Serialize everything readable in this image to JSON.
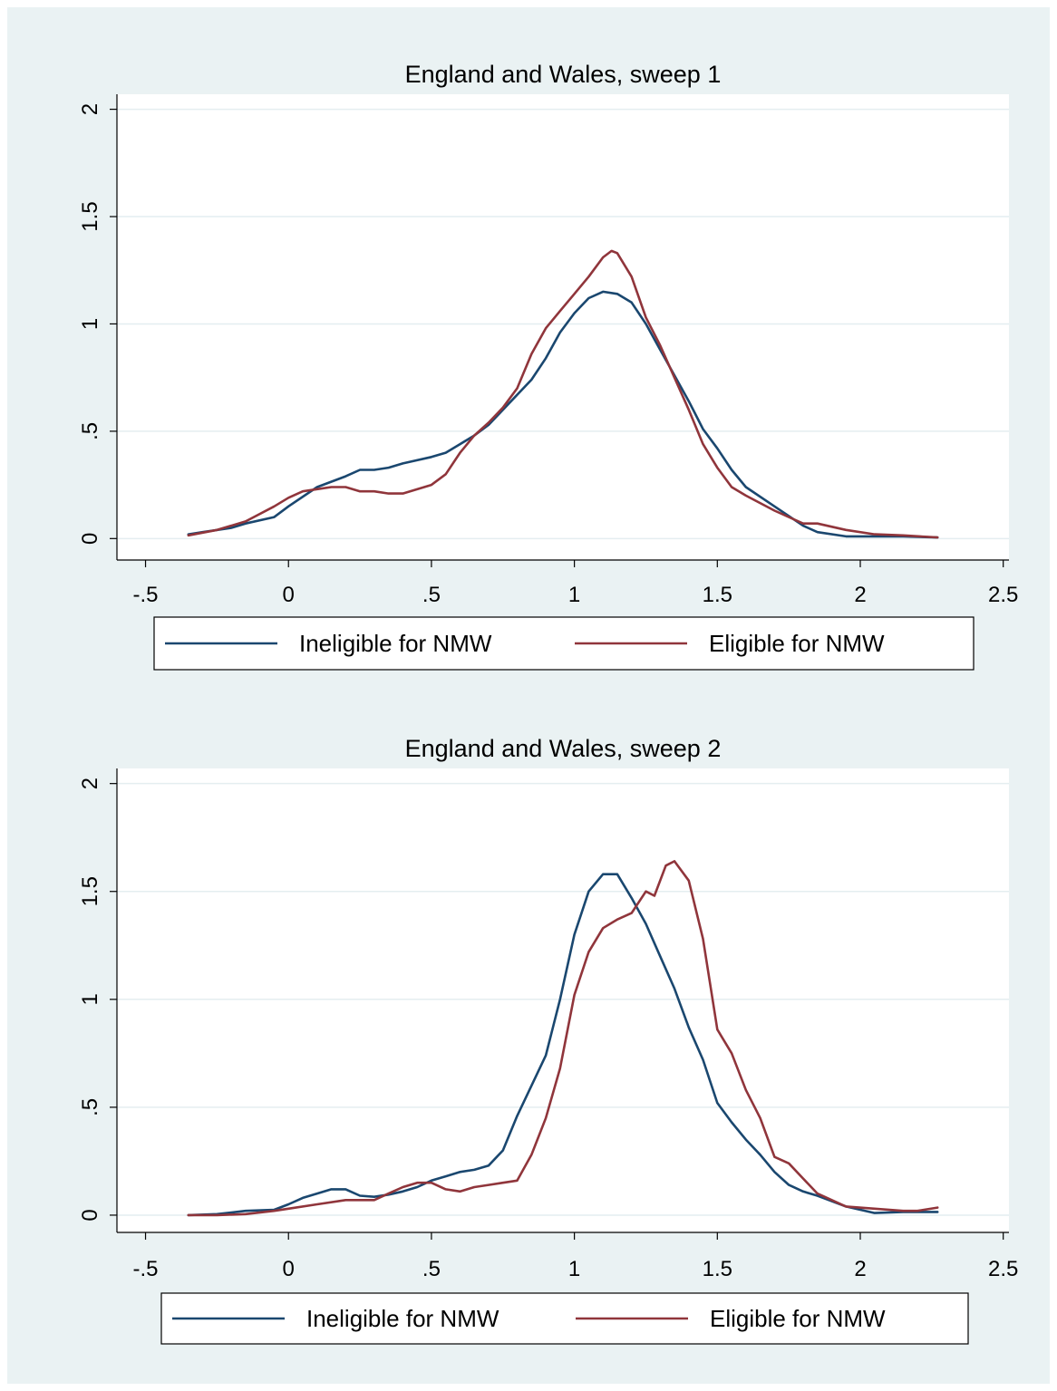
{
  "chart_data": [
    {
      "type": "line",
      "title": "England and Wales, sweep 1",
      "xlabel": "",
      "ylabel": "",
      "xlim": [
        -0.6,
        2.52
      ],
      "ylim": [
        -0.1,
        2.07
      ],
      "xticks": [
        -0.5,
        0,
        0.5,
        1,
        1.5,
        2,
        2.5
      ],
      "xtick_labels": [
        "-.5",
        "0",
        ".5",
        "1",
        "1.5",
        "2",
        "2.5"
      ],
      "yticks": [
        0,
        0.5,
        1,
        1.5,
        2
      ],
      "ytick_labels": [
        "0",
        ".5",
        "1",
        "1.5",
        "2"
      ],
      "grid": true,
      "legend_position": "bottom",
      "series": [
        {
          "name": "Ineligible for NMW",
          "color": "#1a476f",
          "x": [
            -0.35,
            -0.3,
            -0.2,
            -0.15,
            -0.05,
            0,
            0.1,
            0.2,
            0.25,
            0.3,
            0.35,
            0.4,
            0.5,
            0.55,
            0.6,
            0.65,
            0.7,
            0.75,
            0.85,
            0.9,
            0.95,
            1,
            1.05,
            1.1,
            1.15,
            1.2,
            1.25,
            1.3,
            1.35,
            1.4,
            1.45,
            1.5,
            1.55,
            1.6,
            1.7,
            1.8,
            1.85,
            1.95,
            2.05,
            2.15,
            2.27
          ],
          "y": [
            0.02,
            0.03,
            0.05,
            0.07,
            0.1,
            0.15,
            0.24,
            0.29,
            0.32,
            0.32,
            0.33,
            0.35,
            0.38,
            0.4,
            0.44,
            0.48,
            0.53,
            0.6,
            0.74,
            0.84,
            0.96,
            1.05,
            1.12,
            1.15,
            1.14,
            1.1,
            1.0,
            0.88,
            0.76,
            0.64,
            0.51,
            0.42,
            0.32,
            0.24,
            0.15,
            0.06,
            0.03,
            0.01,
            0.01,
            0.01,
            0.005
          ]
        },
        {
          "name": "Eligible for NMW",
          "color": "#90353b",
          "x": [
            -0.35,
            -0.25,
            -0.15,
            -0.05,
            0,
            0.05,
            0.1,
            0.15,
            0.2,
            0.25,
            0.3,
            0.35,
            0.4,
            0.5,
            0.55,
            0.6,
            0.65,
            0.7,
            0.75,
            0.8,
            0.85,
            0.9,
            0.95,
            1.0,
            1.05,
            1.1,
            1.13,
            1.15,
            1.2,
            1.25,
            1.3,
            1.35,
            1.4,
            1.45,
            1.5,
            1.55,
            1.6,
            1.7,
            1.8,
            1.85,
            1.95,
            2.05,
            2.15,
            2.27
          ],
          "y": [
            0.015,
            0.04,
            0.08,
            0.15,
            0.19,
            0.22,
            0.23,
            0.24,
            0.24,
            0.22,
            0.22,
            0.21,
            0.21,
            0.25,
            0.3,
            0.4,
            0.48,
            0.54,
            0.61,
            0.7,
            0.86,
            0.98,
            1.06,
            1.14,
            1.22,
            1.31,
            1.34,
            1.33,
            1.22,
            1.03,
            0.9,
            0.75,
            0.6,
            0.44,
            0.33,
            0.24,
            0.2,
            0.13,
            0.07,
            0.07,
            0.04,
            0.02,
            0.015,
            0.005
          ]
        }
      ]
    },
    {
      "type": "line",
      "title": "England and Wales, sweep 2",
      "xlabel": "",
      "ylabel": "",
      "xlim": [
        -0.6,
        2.52
      ],
      "ylim": [
        -0.08,
        2.07
      ],
      "xticks": [
        -0.5,
        0,
        0.5,
        1,
        1.5,
        2,
        2.5
      ],
      "xtick_labels": [
        "-.5",
        "0",
        ".5",
        "1",
        "1.5",
        "2",
        "2.5"
      ],
      "yticks": [
        0,
        0.5,
        1,
        1.5,
        2
      ],
      "ytick_labels": [
        "0",
        ".5",
        "1",
        "1.5",
        "2"
      ],
      "grid": true,
      "legend_position": "bottom",
      "series": [
        {
          "name": "Ineligible for NMW",
          "color": "#1a476f",
          "x": [
            -0.35,
            -0.25,
            -0.15,
            -0.05,
            0,
            0.05,
            0.1,
            0.15,
            0.2,
            0.25,
            0.3,
            0.35,
            0.4,
            0.45,
            0.5,
            0.55,
            0.6,
            0.65,
            0.7,
            0.75,
            0.8,
            0.85,
            0.9,
            0.95,
            1.0,
            1.05,
            1.1,
            1.15,
            1.2,
            1.25,
            1.3,
            1.35,
            1.4,
            1.45,
            1.5,
            1.55,
            1.6,
            1.65,
            1.7,
            1.75,
            1.8,
            1.85,
            1.95,
            2.05,
            2.15,
            2.27
          ],
          "y": [
            0,
            0.005,
            0.02,
            0.025,
            0.05,
            0.08,
            0.1,
            0.12,
            0.12,
            0.09,
            0.085,
            0.095,
            0.11,
            0.13,
            0.16,
            0.18,
            0.2,
            0.21,
            0.23,
            0.3,
            0.46,
            0.6,
            0.74,
            1.0,
            1.3,
            1.5,
            1.58,
            1.58,
            1.47,
            1.35,
            1.2,
            1.05,
            0.87,
            0.72,
            0.52,
            0.43,
            0.35,
            0.28,
            0.2,
            0.14,
            0.11,
            0.09,
            0.04,
            0.01,
            0.015,
            0.015
          ]
        },
        {
          "name": "Eligible for NMW",
          "color": "#90353b",
          "x": [
            -0.35,
            -0.25,
            -0.15,
            -0.05,
            0,
            0.1,
            0.2,
            0.3,
            0.35,
            0.4,
            0.45,
            0.5,
            0.55,
            0.6,
            0.65,
            0.7,
            0.75,
            0.8,
            0.85,
            0.9,
            0.95,
            1.0,
            1.05,
            1.1,
            1.15,
            1.2,
            1.25,
            1.28,
            1.32,
            1.35,
            1.4,
            1.45,
            1.5,
            1.55,
            1.6,
            1.65,
            1.7,
            1.75,
            1.8,
            1.85,
            1.95,
            2.05,
            2.15,
            2.2,
            2.27
          ],
          "y": [
            0,
            0,
            0.005,
            0.02,
            0.03,
            0.05,
            0.07,
            0.07,
            0.1,
            0.13,
            0.15,
            0.15,
            0.12,
            0.11,
            0.13,
            0.14,
            0.15,
            0.16,
            0.28,
            0.45,
            0.68,
            1.02,
            1.22,
            1.33,
            1.37,
            1.4,
            1.5,
            1.48,
            1.62,
            1.64,
            1.55,
            1.28,
            0.86,
            0.75,
            0.58,
            0.45,
            0.27,
            0.24,
            0.17,
            0.1,
            0.04,
            0.03,
            0.02,
            0.02,
            0.035
          ]
        }
      ]
    }
  ]
}
